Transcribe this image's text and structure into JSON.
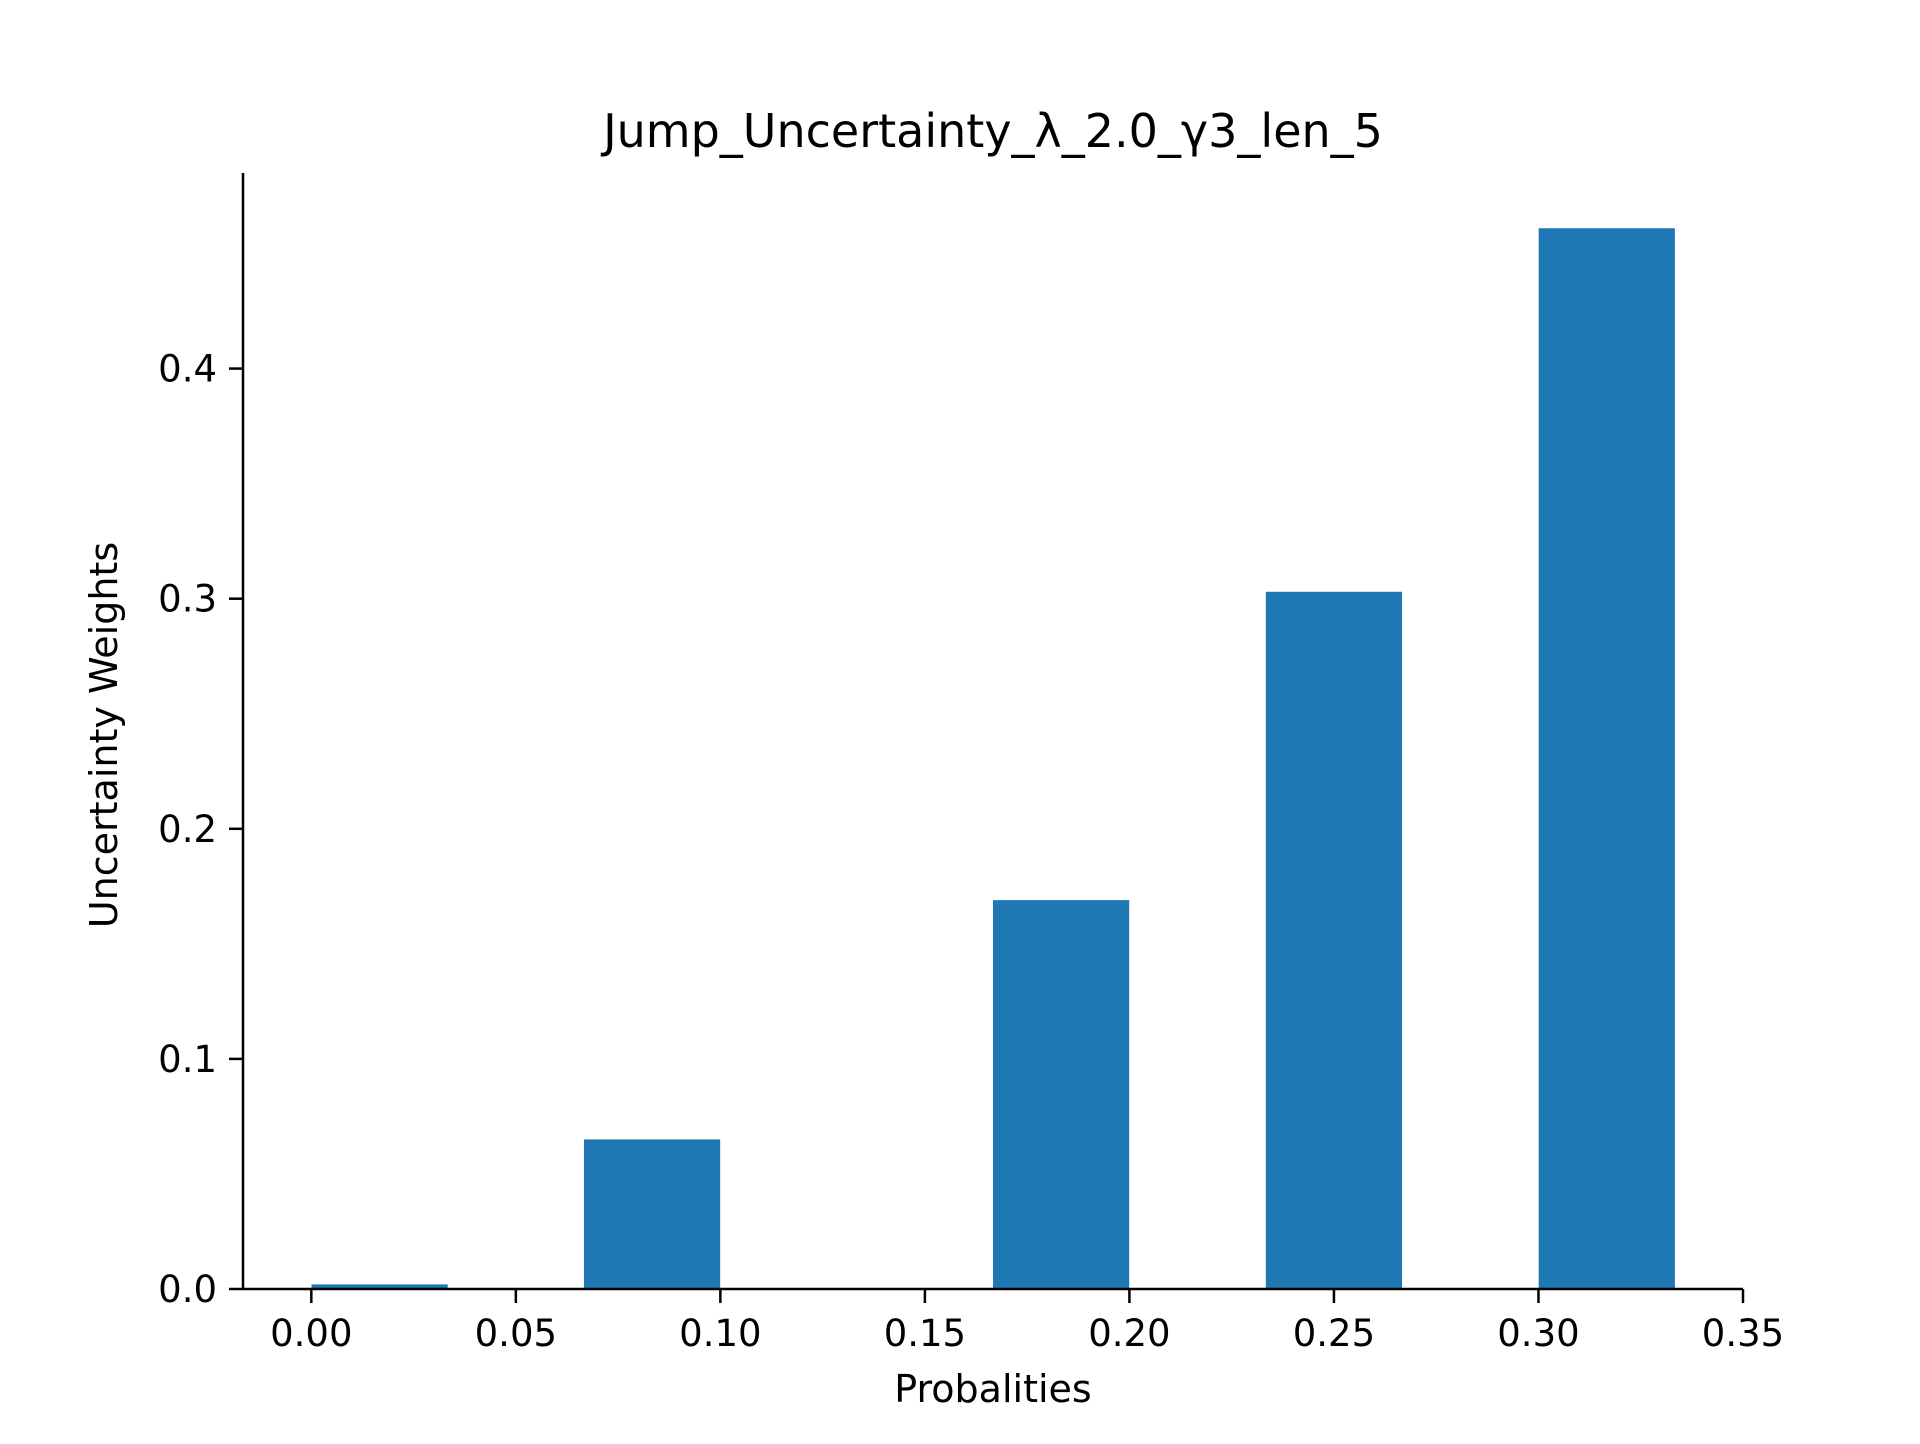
{
  "chart_data": {
    "type": "bar",
    "title": "Jump_Uncertainty_λ_2.0_γ3_len_5",
    "xlabel": "Probalities",
    "ylabel": "Uncertainty Weights",
    "bar_width": 0.0333,
    "bars": [
      {
        "x": 0.0167,
        "value": 0.002
      },
      {
        "x": 0.0833,
        "value": 0.065
      },
      {
        "x": 0.1833,
        "value": 0.169
      },
      {
        "x": 0.25,
        "value": 0.303
      },
      {
        "x": 0.3167,
        "value": 0.461
      }
    ],
    "xlim": [
      -0.0167,
      0.35
    ],
    "ylim": [
      0,
      0.485
    ],
    "xticks": [
      0.0,
      0.05,
      0.1,
      0.15,
      0.2,
      0.25,
      0.3,
      0.35
    ],
    "xtick_labels": [
      "0.00",
      "0.05",
      "0.10",
      "0.15",
      "0.20",
      "0.25",
      "0.30",
      "0.35"
    ],
    "yticks": [
      0.0,
      0.1,
      0.2,
      0.3,
      0.4
    ],
    "ytick_labels": [
      "0.0",
      "0.1",
      "0.2",
      "0.3",
      "0.4"
    ],
    "grid": false,
    "legend": "none",
    "bar_color": "#1f77b4",
    "axis_color": "#000000"
  }
}
